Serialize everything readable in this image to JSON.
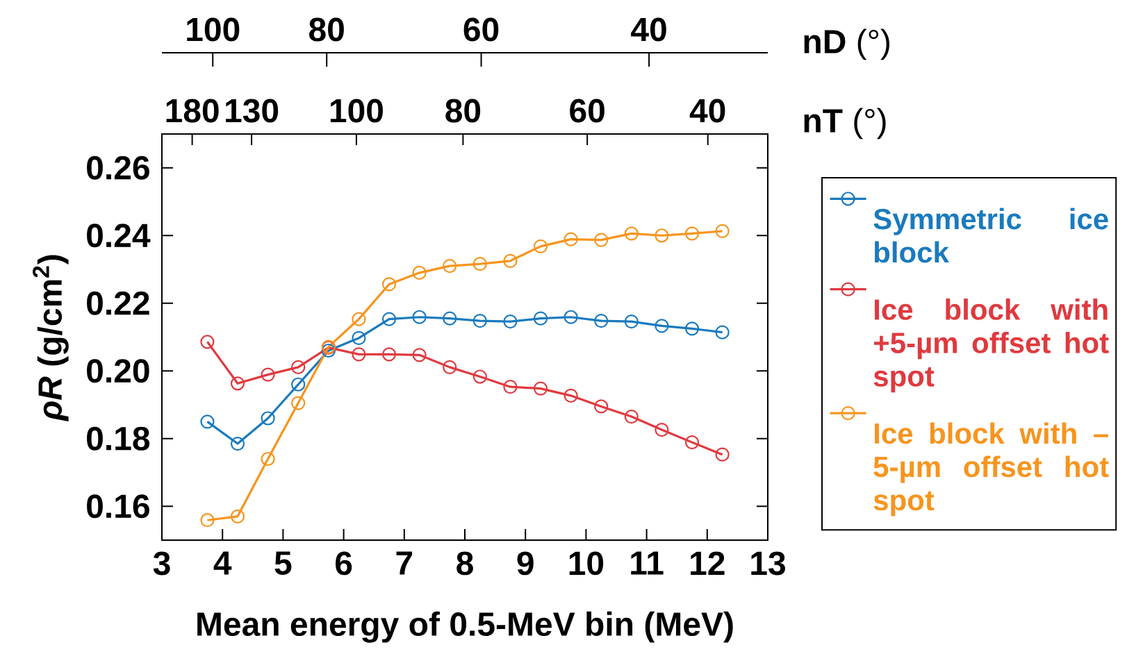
{
  "chart_data": {
    "type": "line",
    "xlabel": "Mean energy of 0.5-MeV bin (MeV)",
    "ylabel": "*ρR* (g/cm$^{2}$)",
    "x": [
      3.75,
      4.25,
      4.75,
      5.25,
      5.75,
      6.25,
      6.75,
      7.25,
      7.75,
      8.25,
      8.75,
      9.25,
      9.75,
      10.25,
      10.75,
      11.25,
      11.75,
      12.25
    ],
    "series": [
      {
        "name": "Symmetric ice block",
        "color": "#1a7abf",
        "values": [
          0.185,
          0.1785,
          0.186,
          0.196,
          0.206,
          0.2097,
          0.2153,
          0.2159,
          0.2155,
          0.2148,
          0.2146,
          0.2155,
          0.2159,
          0.2148,
          0.2146,
          0.2133,
          0.2125,
          0.2114
        ]
      },
      {
        "name": "Ice block with +5-µm offset hot spot",
        "color": "#e0393e",
        "values": [
          0.2086,
          0.1963,
          0.1989,
          0.2011,
          0.2069,
          0.2049,
          0.2049,
          0.2047,
          0.2011,
          0.1983,
          0.1953,
          0.1948,
          0.1927,
          0.1895,
          0.1865,
          0.1826,
          0.1789,
          0.1753
        ]
      },
      {
        "name": "Ice block with –5-µm offset hot spot",
        "color": "#f7941d",
        "values": [
          0.1559,
          0.157,
          0.174,
          0.1905,
          0.2071,
          0.2153,
          0.2256,
          0.229,
          0.231,
          0.2316,
          0.2325,
          0.2368,
          0.2389,
          0.2387,
          0.2406,
          0.24,
          0.2406,
          0.2413
        ]
      }
    ],
    "xlim": [
      3,
      13
    ],
    "xticks": [
      3,
      4,
      5,
      6,
      7,
      8,
      9,
      10,
      11,
      12,
      13
    ],
    "ylim": [
      0.15,
      0.27
    ],
    "yticks": [
      0.16,
      0.18,
      {
        "value": 0.2,
        "label": "0.20"
      },
      0.22,
      0.24,
      0.26
    ],
    "annotations": [
      "**nT** (°)",
      "180",
      "130",
      "100",
      "80",
      "60",
      "40",
      "**nD** (°)",
      "100",
      "80",
      "60",
      "40"
    ],
    "legend": "right",
    "marker": "circle",
    "line_style": "solid"
  }
}
